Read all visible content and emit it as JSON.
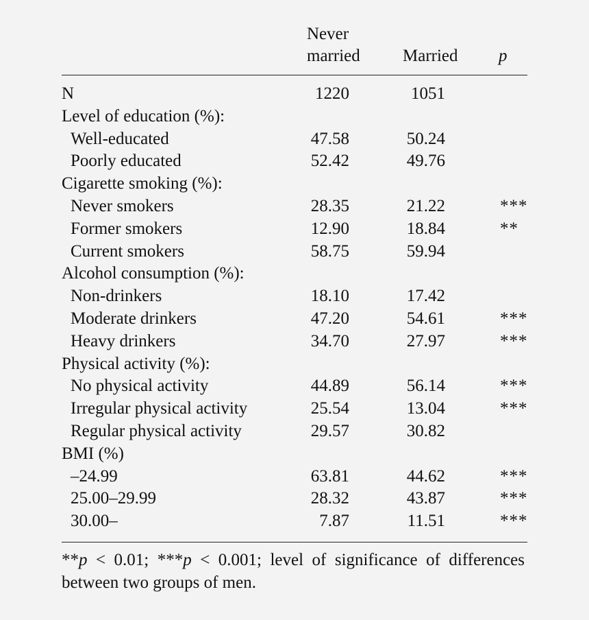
{
  "table": {
    "header": {
      "never_line1": "Never",
      "never_line2": "married",
      "married": "Married",
      "p": "p"
    },
    "rows": [
      {
        "label": "N",
        "indent": false,
        "never": "1220",
        "married": "1051",
        "p": ""
      },
      {
        "label": "Level of education (%):",
        "indent": false,
        "never": "",
        "married": "",
        "p": ""
      },
      {
        "label": "Well-educated",
        "indent": true,
        "never": "47.58",
        "married": "50.24",
        "p": ""
      },
      {
        "label": "Poorly educated",
        "indent": true,
        "never": "52.42",
        "married": "49.76",
        "p": ""
      },
      {
        "label": "Cigarette smoking (%):",
        "indent": false,
        "never": "",
        "married": "",
        "p": ""
      },
      {
        "label": "Never smokers",
        "indent": true,
        "never": "28.35",
        "married": "21.22",
        "p": "***"
      },
      {
        "label": "Former smokers",
        "indent": true,
        "never": "12.90",
        "married": "18.84",
        "p": "**"
      },
      {
        "label": "Current smokers",
        "indent": true,
        "never": "58.75",
        "married": "59.94",
        "p": ""
      },
      {
        "label": "Alcohol consumption (%):",
        "indent": false,
        "never": "",
        "married": "",
        "p": ""
      },
      {
        "label": "Non-drinkers",
        "indent": true,
        "never": "18.10",
        "married": "17.42",
        "p": ""
      },
      {
        "label": "Moderate drinkers",
        "indent": true,
        "never": "47.20",
        "married": "54.61",
        "p": "***"
      },
      {
        "label": "Heavy drinkers",
        "indent": true,
        "never": "34.70",
        "married": "27.97",
        "p": "***"
      },
      {
        "label": "Physical activity (%):",
        "indent": false,
        "never": "",
        "married": "",
        "p": ""
      },
      {
        "label": "No physical activity",
        "indent": true,
        "never": "44.89",
        "married": "56.14",
        "p": "***"
      },
      {
        "label": "Irregular physical activity",
        "indent": true,
        "never": "25.54",
        "married": "13.04",
        "p": "***"
      },
      {
        "label": "Regular physical activity",
        "indent": true,
        "never": "29.57",
        "married": "30.82",
        "p": ""
      },
      {
        "label": "BMI (%)",
        "indent": false,
        "never": "",
        "married": "",
        "p": ""
      },
      {
        "label": "–24.99",
        "indent": true,
        "never": "63.81",
        "married": "44.62",
        "p": "***"
      },
      {
        "label": "25.00–29.99",
        "indent": true,
        "never": "28.32",
        "married": "43.87",
        "p": "***"
      },
      {
        "label": "30.00–",
        "indent": true,
        "never": "7.87",
        "married": "11.51",
        "p": "***"
      }
    ]
  },
  "footnote": {
    "sig1_stars": "**",
    "sig1_p": "p",
    "sig1_rest": " < 0.01; ",
    "sig2_stars": "***",
    "sig2_p": "p",
    "sig2_rest": " < 0.001; level of significance of differences between two groups of men."
  }
}
